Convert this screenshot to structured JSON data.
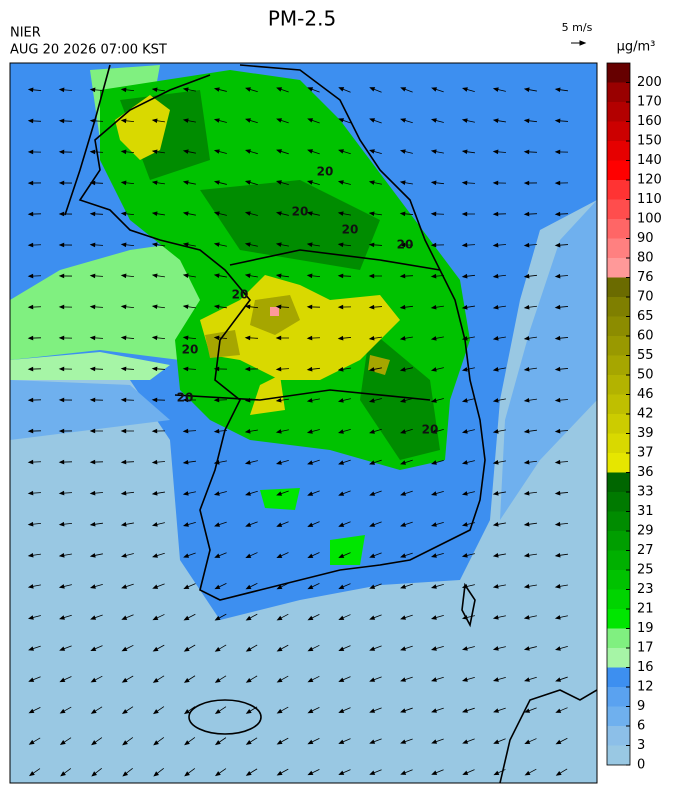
{
  "map": {
    "title": "PM-2.5",
    "source": "NIER",
    "datetime": "AUG 20 2026 07:00 KST",
    "wind_scale": "5 m/s",
    "legend": {
      "unit": "μg/m³",
      "levels": [
        0,
        3,
        6,
        9,
        12,
        16,
        17,
        19,
        21,
        23,
        25,
        27,
        29,
        31,
        33,
        36,
        37,
        39,
        42,
        46,
        50,
        55,
        60,
        65,
        70,
        76,
        80,
        90,
        100,
        110,
        120,
        140,
        150,
        160,
        170,
        200
      ],
      "colors": [
        "#99c8e3",
        "#8cbfe8",
        "#6fb0ee",
        "#5aa2f0",
        "#3d8ff0",
        "#a6f5a6",
        "#80f080",
        "#00e600",
        "#00d400",
        "#00c200",
        "#00b000",
        "#009e00",
        "#008c00",
        "#007a00",
        "#006600",
        "#e6e600",
        "#d9d900",
        "#cccc00",
        "#bfbf00",
        "#b3b300",
        "#a6a600",
        "#999900",
        "#8c8c00",
        "#7f7f00",
        "#6b6b00",
        "#ff9999",
        "#ff8080",
        "#ff6666",
        "#ff4d4d",
        "#ff3333",
        "#ff0000",
        "#e60000",
        "#cc0000",
        "#b30000",
        "#990000",
        "#660000"
      ]
    },
    "contour_labels": [
      20,
      20,
      20,
      20,
      20,
      20,
      20,
      20
    ]
  }
}
